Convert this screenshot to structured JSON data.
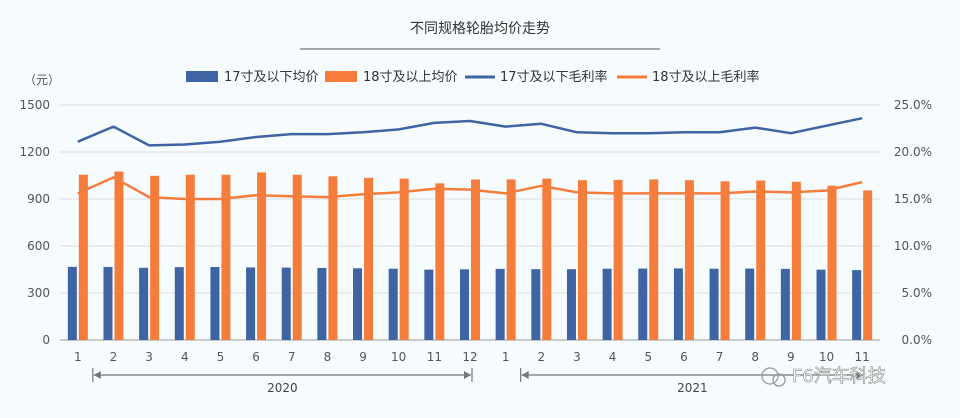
{
  "chart_data": {
    "type": "bar",
    "title": "不同规格轮胎均价走势",
    "ylabel_left": "（元）",
    "left_axis": {
      "ylim": [
        0,
        1500
      ],
      "ticks": [
        "0",
        "300",
        "600",
        "900",
        "1200",
        "1500"
      ]
    },
    "right_axis": {
      "ylim": [
        0,
        25
      ],
      "ticks": [
        "0.0%",
        "5.0%",
        "10.0%",
        "15.0%",
        "20.0%",
        "25.0%"
      ]
    },
    "categories": [
      "1",
      "2",
      "3",
      "4",
      "5",
      "6",
      "7",
      "8",
      "9",
      "10",
      "11",
      "12",
      "1",
      "2",
      "3",
      "4",
      "5",
      "6",
      "7",
      "8",
      "9",
      "10",
      "11"
    ],
    "year_groups": [
      {
        "label": "2020",
        "from": 0,
        "to": 11
      },
      {
        "label": "2021",
        "from": 12,
        "to": 22
      }
    ],
    "legend": [
      "17寸及以下均价",
      "18寸及以上均价",
      "17寸及以下毛利率",
      "18寸及以上毛利率"
    ],
    "series": [
      {
        "name": "17寸及以下均价",
        "type": "bar",
        "axis": "left",
        "color": "#3f64a3",
        "values": [
          467,
          466,
          461,
          465,
          466,
          463,
          462,
          460,
          458,
          455,
          449,
          451,
          454,
          452,
          452,
          455,
          456,
          457,
          455,
          456,
          454,
          449,
          446
        ]
      },
      {
        "name": "18寸及以上均价",
        "type": "bar",
        "axis": "left",
        "color": "#f57d3c",
        "values": [
          1055,
          1075,
          1048,
          1055,
          1055,
          1070,
          1055,
          1045,
          1035,
          1030,
          1000,
          1025,
          1025,
          1030,
          1020,
          1022,
          1025,
          1020,
          1013,
          1018,
          1010,
          985,
          955
        ]
      },
      {
        "name": "17寸及以下毛利率",
        "type": "line",
        "axis": "right",
        "color": "#3f64a3",
        "values": [
          21.1,
          22.7,
          20.7,
          20.8,
          21.1,
          21.6,
          21.9,
          21.9,
          22.1,
          22.4,
          23.1,
          23.3,
          22.7,
          23.0,
          22.1,
          22.0,
          22.0,
          22.1,
          22.1,
          22.6,
          22.0,
          22.8,
          23.6
        ]
      },
      {
        "name": "18寸及以上毛利率",
        "type": "line",
        "axis": "right",
        "color": "#f57d3c",
        "values": [
          15.6,
          17.3,
          15.2,
          15.0,
          15.0,
          15.4,
          15.3,
          15.2,
          15.5,
          15.7,
          16.1,
          16.0,
          15.6,
          16.4,
          15.7,
          15.6,
          15.6,
          15.6,
          15.6,
          15.8,
          15.7,
          15.9,
          16.8
        ]
      }
    ],
    "grid": true,
    "legend_position": "top"
  },
  "watermark": "F6汽车科技",
  "colors": {
    "bar_small": "#3f64a3",
    "bar_large": "#f57d3c",
    "grid": "#dddddd",
    "axis_text": "#555555"
  }
}
